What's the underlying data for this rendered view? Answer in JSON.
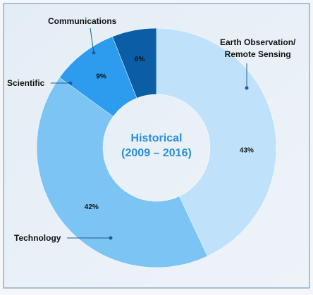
{
  "chart_data": {
    "type": "donut",
    "center_label": "Historical\n(2009 – 2016)",
    "categories": [
      "Earth Observation/\nRemote Sensing",
      "Technology",
      "Scientific",
      "Communications"
    ],
    "values": [
      43,
      42,
      9,
      6
    ],
    "value_labels": [
      "43%",
      "42%",
      "9%",
      "6%"
    ],
    "colors": [
      "#bfe2fa",
      "#7cc4f4",
      "#2d9cee",
      "#0b5ea6"
    ]
  }
}
